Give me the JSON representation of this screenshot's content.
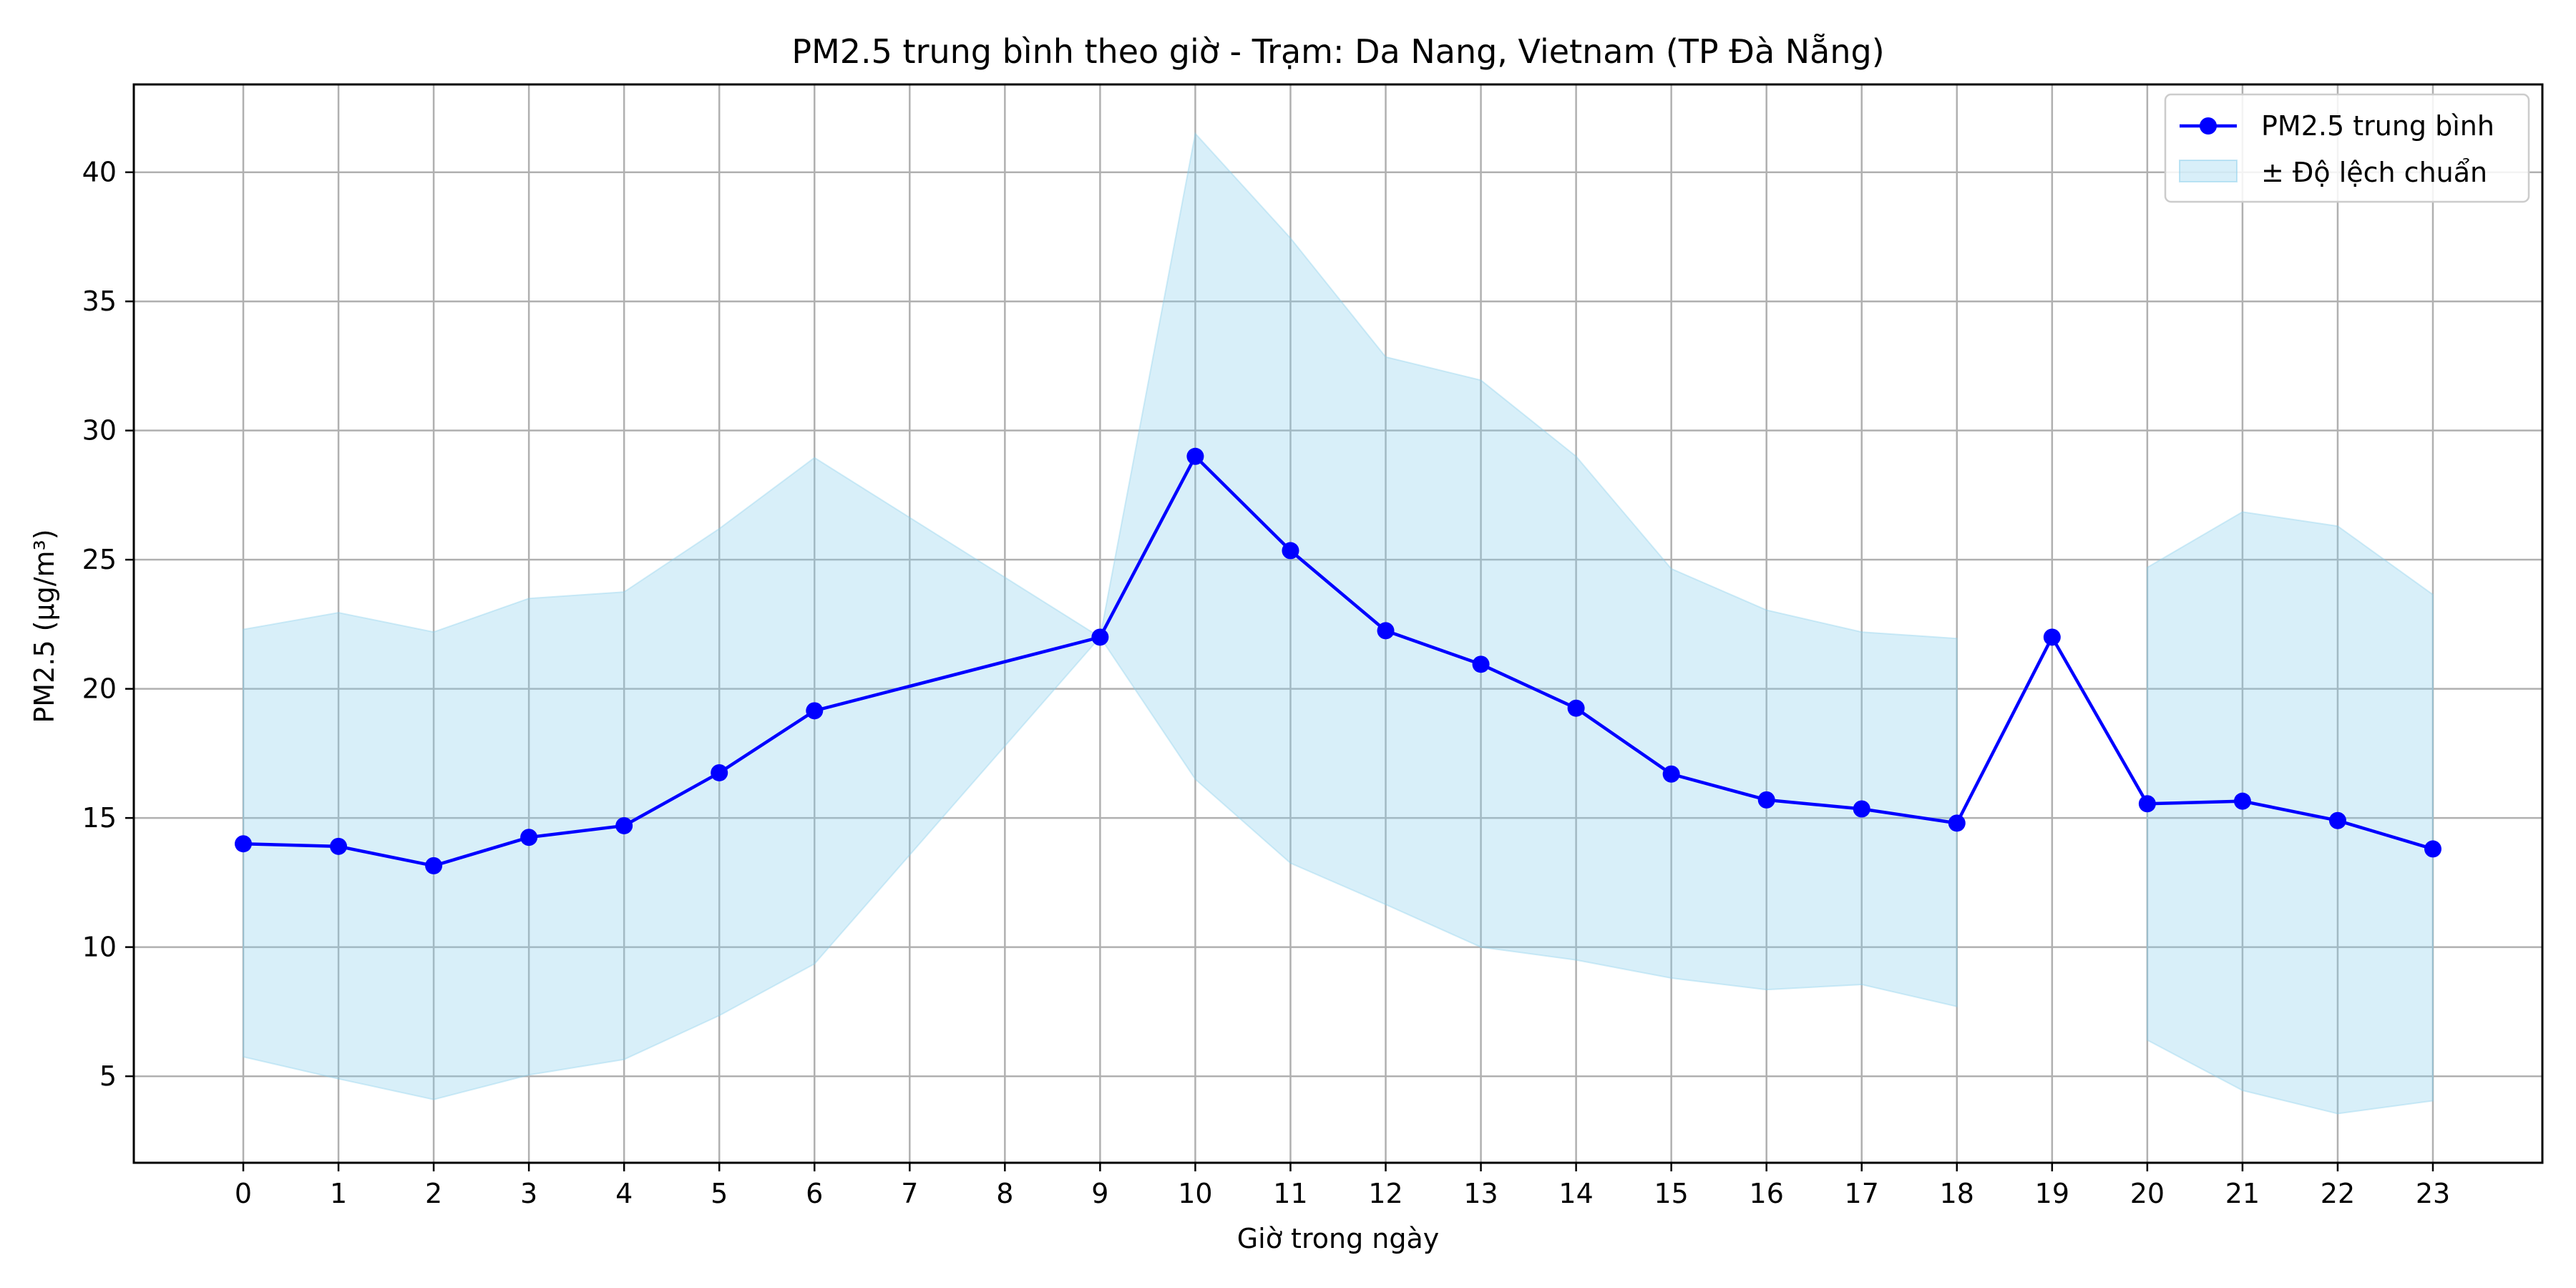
{
  "chart_data": {
    "type": "line",
    "title": "PM2.5 trung bình theo giờ - Trạm: Da Nang, Vietnam (TP Đà Nẵng)",
    "xlabel": "Giờ trong ngày",
    "ylabel": "PM2.5 (µg/m³)",
    "x": [
      0,
      1,
      2,
      3,
      4,
      5,
      6,
      9,
      10,
      11,
      12,
      13,
      14,
      15,
      16,
      17,
      18,
      19,
      20,
      21,
      22,
      23
    ],
    "xticks": [
      0,
      1,
      2,
      3,
      4,
      5,
      6,
      7,
      8,
      9,
      10,
      11,
      12,
      13,
      14,
      15,
      16,
      17,
      18,
      19,
      20,
      21,
      22,
      23
    ],
    "yticks": [
      5,
      10,
      15,
      20,
      25,
      30,
      35,
      40
    ],
    "xlim": [
      -1.15,
      24.15
    ],
    "ylim": [
      1.65,
      43.4
    ],
    "grid": true,
    "legend_position": "top-right",
    "series": [
      {
        "name": "PM2.5 trung bình",
        "kind": "line-marker",
        "color": "#0000ff",
        "values": [
          14.0,
          13.9,
          13.15,
          14.25,
          14.7,
          16.75,
          19.15,
          22.0,
          29.0,
          25.35,
          22.25,
          20.95,
          19.25,
          16.7,
          15.7,
          15.35,
          14.8,
          22.0,
          15.55,
          15.65,
          14.9,
          13.8
        ]
      },
      {
        "name": "± Độ lệch chuẩn",
        "kind": "band",
        "color": "#87ceeb",
        "segments": [
          {
            "x": [
              0,
              1,
              2,
              3,
              4,
              5,
              6,
              9,
              10,
              11,
              12,
              13,
              14,
              15,
              16,
              17,
              18
            ],
            "upper": [
              22.3,
              22.95,
              22.2,
              23.5,
              23.75,
              26.2,
              28.95,
              22.0,
              41.5,
              37.45,
              32.85,
              31.95,
              29.0,
              24.65,
              23.05,
              22.2,
              21.95
            ],
            "lower": [
              5.75,
              4.9,
              4.1,
              5.05,
              5.65,
              7.35,
              9.35,
              22.0,
              16.5,
              13.25,
              11.65,
              10.0,
              9.5,
              8.8,
              8.35,
              8.55,
              7.7
            ]
          },
          {
            "x": [
              20,
              21,
              22,
              23
            ],
            "upper": [
              24.7,
              26.85,
              26.3,
              23.65
            ],
            "lower": [
              6.4,
              4.45,
              3.55,
              4.05
            ]
          }
        ]
      }
    ]
  }
}
